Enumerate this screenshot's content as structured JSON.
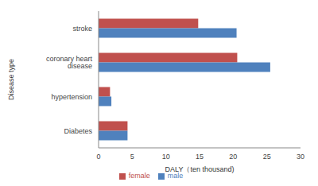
{
  "chart_data": {
    "type": "bar",
    "orientation": "horizontal",
    "x_label": "DALY（ten thousand)",
    "y_label": "Disease type",
    "categories": [
      "stroke",
      "coronary heart disease",
      "hypertension",
      "Diabetes"
    ],
    "series": [
      {
        "name": "female",
        "color": "#c0504d",
        "values": [
          14.8,
          20.6,
          1.7,
          4.3
        ]
      },
      {
        "name": "male",
        "color": "#4f81bd",
        "values": [
          20.5,
          25.5,
          1.9,
          4.3
        ]
      }
    ],
    "xlim": [
      0,
      30
    ],
    "xticks": [
      0,
      5,
      10,
      15,
      20,
      25,
      30
    ],
    "grid": false,
    "legend": "bottom"
  }
}
